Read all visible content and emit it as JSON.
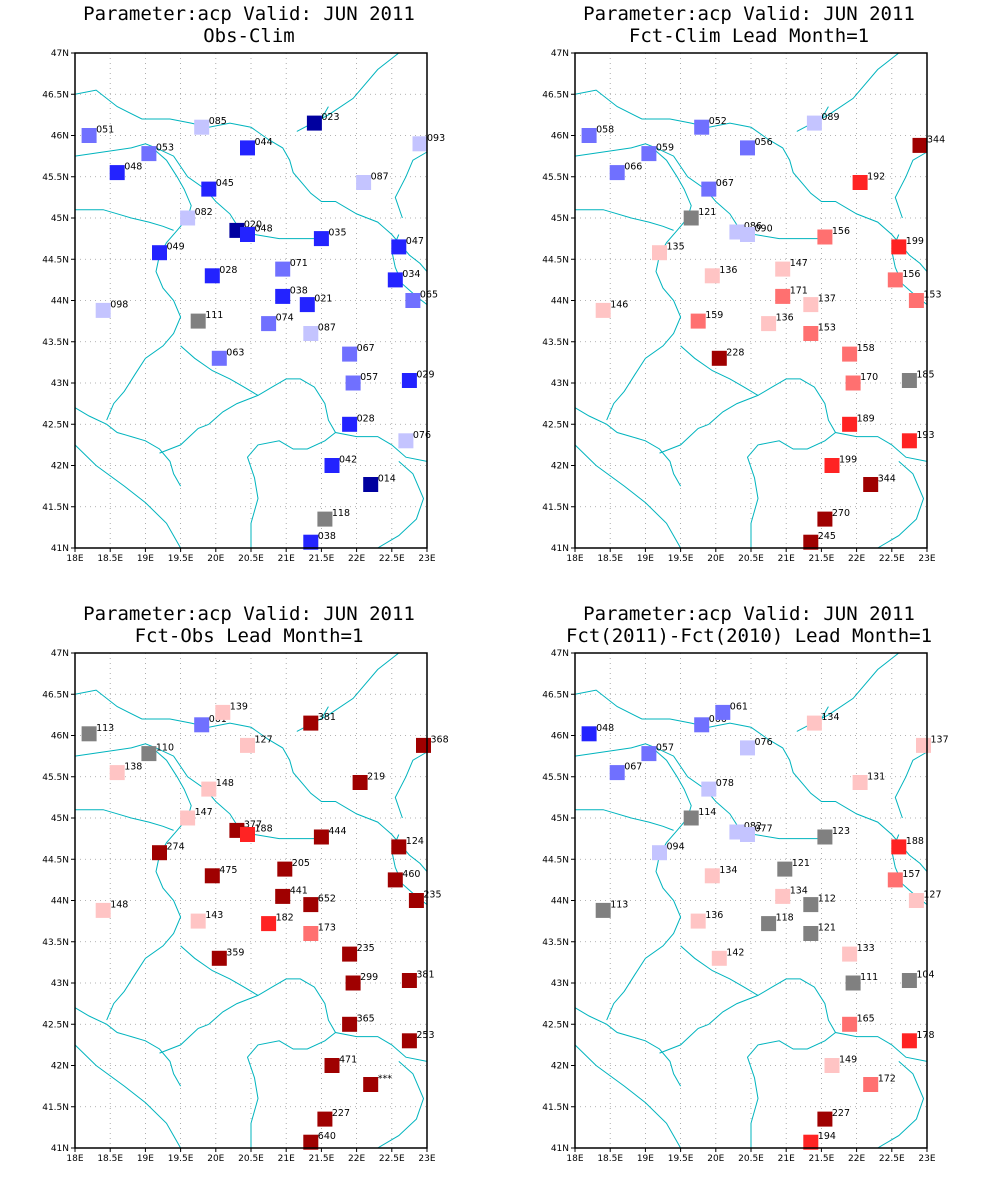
{
  "colors": {
    "b3": "#00009f",
    "b2": "#2323ff",
    "b1": "#7070ff",
    "b0": "#c4c4ff",
    "g": "#808080",
    "r0": "#ffc4c4",
    "r1": "#ff7070",
    "r2": "#ff2323",
    "r3": "#9f0000",
    "border": "#00b4be"
  },
  "axes": {
    "x_ticks": [
      "18E",
      "18.5E",
      "19E",
      "19.5E",
      "20E",
      "20.5E",
      "21E",
      "21.5E",
      "22E",
      "22.5E",
      "23E"
    ],
    "y_ticks": [
      "41N",
      "41.5N",
      "42N",
      "42.5N",
      "43N",
      "43.5N",
      "44N",
      "44.5N",
      "45N",
      "45.5N",
      "46N",
      "46.5N",
      "47N"
    ],
    "lon_range": [
      18,
      23
    ],
    "lat_range": [
      41,
      47
    ]
  },
  "panels": [
    {
      "title_line1": "Parameter:acp Valid: JUN 2011",
      "title_line2": "Obs-Clim",
      "stations": [
        {
          "lon": 18.2,
          "lat": 46.0,
          "label": "051",
          "c": "b1"
        },
        {
          "lon": 19.8,
          "lat": 46.1,
          "label": "085",
          "c": "b0"
        },
        {
          "lon": 21.4,
          "lat": 46.15,
          "label": "023",
          "c": "b3"
        },
        {
          "lon": 22.9,
          "lat": 45.9,
          "label": "093",
          "c": "b0"
        },
        {
          "lon": 19.05,
          "lat": 45.78,
          "label": "053",
          "c": "b1"
        },
        {
          "lon": 20.45,
          "lat": 45.85,
          "label": "044",
          "c": "b2"
        },
        {
          "lon": 18.6,
          "lat": 45.55,
          "label": "048",
          "c": "b2"
        },
        {
          "lon": 19.9,
          "lat": 45.35,
          "label": "045",
          "c": "b2"
        },
        {
          "lon": 22.1,
          "lat": 45.43,
          "label": "087",
          "c": "b0"
        },
        {
          "lon": 19.6,
          "lat": 45.0,
          "label": "082",
          "c": "b0"
        },
        {
          "lon": 20.3,
          "lat": 44.85,
          "label": "020",
          "c": "b3"
        },
        {
          "lon": 20.45,
          "lat": 44.8,
          "label": "048",
          "c": "b2"
        },
        {
          "lon": 21.5,
          "lat": 44.75,
          "label": "035",
          "c": "b2"
        },
        {
          "lon": 22.6,
          "lat": 44.65,
          "label": "047",
          "c": "b2"
        },
        {
          "lon": 19.2,
          "lat": 44.58,
          "label": "049",
          "c": "b2"
        },
        {
          "lon": 19.95,
          "lat": 44.3,
          "label": "028",
          "c": "b2"
        },
        {
          "lon": 20.95,
          "lat": 44.38,
          "label": "071",
          "c": "b1"
        },
        {
          "lon": 22.55,
          "lat": 44.25,
          "label": "034",
          "c": "b2"
        },
        {
          "lon": 20.95,
          "lat": 44.05,
          "label": "038",
          "c": "b2"
        },
        {
          "lon": 21.3,
          "lat": 43.95,
          "label": "021",
          "c": "b2"
        },
        {
          "lon": 22.8,
          "lat": 44.0,
          "label": "065",
          "c": "b1"
        },
        {
          "lon": 18.4,
          "lat": 43.88,
          "label": "098",
          "c": "b0"
        },
        {
          "lon": 19.75,
          "lat": 43.75,
          "label": "111",
          "c": "g"
        },
        {
          "lon": 20.75,
          "lat": 43.72,
          "label": "074",
          "c": "b1"
        },
        {
          "lon": 21.35,
          "lat": 43.6,
          "label": "087",
          "c": "b0"
        },
        {
          "lon": 20.05,
          "lat": 43.3,
          "label": "063",
          "c": "b1"
        },
        {
          "lon": 21.9,
          "lat": 43.35,
          "label": "067",
          "c": "b1"
        },
        {
          "lon": 21.95,
          "lat": 43.0,
          "label": "057",
          "c": "b1"
        },
        {
          "lon": 22.75,
          "lat": 43.03,
          "label": "029",
          "c": "b2"
        },
        {
          "lon": 21.9,
          "lat": 42.5,
          "label": "028",
          "c": "b2"
        },
        {
          "lon": 22.7,
          "lat": 42.3,
          "label": "076",
          "c": "b0"
        },
        {
          "lon": 21.65,
          "lat": 42.0,
          "label": "042",
          "c": "b2"
        },
        {
          "lon": 22.2,
          "lat": 41.77,
          "label": "014",
          "c": "b3"
        },
        {
          "lon": 21.55,
          "lat": 41.35,
          "label": "118",
          "c": "g"
        },
        {
          "lon": 21.35,
          "lat": 41.07,
          "label": "038",
          "c": "b2"
        }
      ]
    },
    {
      "title_line1": "Parameter:acp Valid: JUN 2011",
      "title_line2": "Fct-Clim Lead Month=1",
      "stations": [
        {
          "lon": 18.2,
          "lat": 46.0,
          "label": "058",
          "c": "b1"
        },
        {
          "lon": 19.8,
          "lat": 46.1,
          "label": "052",
          "c": "b1"
        },
        {
          "lon": 21.4,
          "lat": 46.15,
          "label": "089",
          "c": "b0"
        },
        {
          "lon": 22.9,
          "lat": 45.88,
          "label": "344",
          "c": "r3"
        },
        {
          "lon": 19.05,
          "lat": 45.78,
          "label": "059",
          "c": "b1"
        },
        {
          "lon": 20.45,
          "lat": 45.85,
          "label": "056",
          "c": "b1"
        },
        {
          "lon": 18.6,
          "lat": 45.55,
          "label": "066",
          "c": "b1"
        },
        {
          "lon": 19.9,
          "lat": 45.35,
          "label": "067",
          "c": "b1"
        },
        {
          "lon": 22.05,
          "lat": 45.43,
          "label": "192",
          "c": "r2"
        },
        {
          "lon": 19.65,
          "lat": 45.0,
          "label": "121",
          "c": "g"
        },
        {
          "lon": 20.3,
          "lat": 44.83,
          "label": "086",
          "c": "b0"
        },
        {
          "lon": 20.45,
          "lat": 44.8,
          "label": "090",
          "c": "b0"
        },
        {
          "lon": 21.55,
          "lat": 44.77,
          "label": "156",
          "c": "r1"
        },
        {
          "lon": 22.6,
          "lat": 44.65,
          "label": "199",
          "c": "r2"
        },
        {
          "lon": 19.2,
          "lat": 44.58,
          "label": "135",
          "c": "r0"
        },
        {
          "lon": 19.95,
          "lat": 44.3,
          "label": "136",
          "c": "r0"
        },
        {
          "lon": 20.95,
          "lat": 44.38,
          "label": "147",
          "c": "r0"
        },
        {
          "lon": 22.55,
          "lat": 44.25,
          "label": "156",
          "c": "r1"
        },
        {
          "lon": 20.95,
          "lat": 44.05,
          "label": "171",
          "c": "r1"
        },
        {
          "lon": 21.35,
          "lat": 43.95,
          "label": "137",
          "c": "r0"
        },
        {
          "lon": 22.85,
          "lat": 44.0,
          "label": "153",
          "c": "r1"
        },
        {
          "lon": 18.4,
          "lat": 43.88,
          "label": "146",
          "c": "r0"
        },
        {
          "lon": 19.75,
          "lat": 43.75,
          "label": "159",
          "c": "r1"
        },
        {
          "lon": 20.75,
          "lat": 43.72,
          "label": "136",
          "c": "r0"
        },
        {
          "lon": 21.35,
          "lat": 43.6,
          "label": "153",
          "c": "r1"
        },
        {
          "lon": 20.05,
          "lat": 43.3,
          "label": "228",
          "c": "r3"
        },
        {
          "lon": 21.9,
          "lat": 43.35,
          "label": "158",
          "c": "r1"
        },
        {
          "lon": 21.95,
          "lat": 43.0,
          "label": "170",
          "c": "r1"
        },
        {
          "lon": 22.75,
          "lat": 43.03,
          "label": "185",
          "c": "g"
        },
        {
          "lon": 21.9,
          "lat": 42.5,
          "label": "189",
          "c": "r2"
        },
        {
          "lon": 22.75,
          "lat": 42.3,
          "label": "193",
          "c": "r2"
        },
        {
          "lon": 21.65,
          "lat": 42.0,
          "label": "199",
          "c": "r2"
        },
        {
          "lon": 22.2,
          "lat": 41.77,
          "label": "344",
          "c": "r3"
        },
        {
          "lon": 21.55,
          "lat": 41.35,
          "label": "270",
          "c": "r3"
        },
        {
          "lon": 21.35,
          "lat": 41.07,
          "label": "245",
          "c": "r3"
        }
      ]
    },
    {
      "title_line1": "Parameter:acp Valid: JUN 2011",
      "title_line2": "Fct-Obs Lead Month=1",
      "stations": [
        {
          "lon": 18.2,
          "lat": 46.02,
          "label": "113",
          "c": "g"
        },
        {
          "lon": 19.8,
          "lat": 46.13,
          "label": "061",
          "c": "b1"
        },
        {
          "lon": 20.1,
          "lat": 46.28,
          "label": "139",
          "c": "r0"
        },
        {
          "lon": 21.35,
          "lat": 46.15,
          "label": "381",
          "c": "r3"
        },
        {
          "lon": 22.95,
          "lat": 45.88,
          "label": "368",
          "c": "r3"
        },
        {
          "lon": 19.05,
          "lat": 45.78,
          "label": "110",
          "c": "g"
        },
        {
          "lon": 20.45,
          "lat": 45.88,
          "label": "127",
          "c": "r0"
        },
        {
          "lon": 18.6,
          "lat": 45.55,
          "label": "138",
          "c": "r0"
        },
        {
          "lon": 19.9,
          "lat": 45.35,
          "label": "148",
          "c": "r0"
        },
        {
          "lon": 22.05,
          "lat": 45.43,
          "label": "219",
          "c": "r3"
        },
        {
          "lon": 19.6,
          "lat": 45.0,
          "label": "147",
          "c": "r0"
        },
        {
          "lon": 20.3,
          "lat": 44.85,
          "label": "377",
          "c": "r3"
        },
        {
          "lon": 20.45,
          "lat": 44.8,
          "label": "188",
          "c": "r2"
        },
        {
          "lon": 21.5,
          "lat": 44.77,
          "label": "444",
          "c": "r3"
        },
        {
          "lon": 22.6,
          "lat": 44.65,
          "label": "124",
          "c": "r3"
        },
        {
          "lon": 19.2,
          "lat": 44.58,
          "label": "274",
          "c": "r3"
        },
        {
          "lon": 19.95,
          "lat": 44.3,
          "label": "475",
          "c": "r3"
        },
        {
          "lon": 20.98,
          "lat": 44.38,
          "label": "205",
          "c": "r3"
        },
        {
          "lon": 22.55,
          "lat": 44.25,
          "label": "460",
          "c": "r3"
        },
        {
          "lon": 20.95,
          "lat": 44.05,
          "label": "441",
          "c": "r3"
        },
        {
          "lon": 21.35,
          "lat": 43.95,
          "label": "652",
          "c": "r3"
        },
        {
          "lon": 22.85,
          "lat": 44.0,
          "label": "235",
          "c": "r3"
        },
        {
          "lon": 18.4,
          "lat": 43.88,
          "label": "148",
          "c": "r0"
        },
        {
          "lon": 19.75,
          "lat": 43.75,
          "label": "143",
          "c": "r0"
        },
        {
          "lon": 20.75,
          "lat": 43.72,
          "label": "182",
          "c": "r2"
        },
        {
          "lon": 21.35,
          "lat": 43.6,
          "label": "173",
          "c": "r1"
        },
        {
          "lon": 20.05,
          "lat": 43.3,
          "label": "359",
          "c": "r3"
        },
        {
          "lon": 21.9,
          "lat": 43.35,
          "label": "235",
          "c": "r3"
        },
        {
          "lon": 21.95,
          "lat": 43.0,
          "label": "299",
          "c": "r3"
        },
        {
          "lon": 22.75,
          "lat": 43.03,
          "label": "381",
          "c": "r3"
        },
        {
          "lon": 21.9,
          "lat": 42.5,
          "label": "365",
          "c": "r3"
        },
        {
          "lon": 22.75,
          "lat": 42.3,
          "label": "253",
          "c": "r3"
        },
        {
          "lon": 21.65,
          "lat": 42.0,
          "label": "471",
          "c": "r3"
        },
        {
          "lon": 22.2,
          "lat": 41.77,
          "label": "***",
          "c": "r3"
        },
        {
          "lon": 21.55,
          "lat": 41.35,
          "label": "227",
          "c": "r3"
        },
        {
          "lon": 21.35,
          "lat": 41.07,
          "label": "640",
          "c": "r3"
        }
      ]
    },
    {
      "title_line1": "Parameter:acp Valid: JUN 2011",
      "title_line2": "Fct(2011)-Fct(2010) Lead Month=1",
      "stations": [
        {
          "lon": 18.2,
          "lat": 46.02,
          "label": "048",
          "c": "b2"
        },
        {
          "lon": 19.8,
          "lat": 46.13,
          "label": "066",
          "c": "b1"
        },
        {
          "lon": 20.1,
          "lat": 46.28,
          "label": "061",
          "c": "b1"
        },
        {
          "lon": 21.4,
          "lat": 46.15,
          "label": "134",
          "c": "r0"
        },
        {
          "lon": 22.95,
          "lat": 45.88,
          "label": "137",
          "c": "r0"
        },
        {
          "lon": 19.05,
          "lat": 45.78,
          "label": "057",
          "c": "b1"
        },
        {
          "lon": 20.45,
          "lat": 45.85,
          "label": "076",
          "c": "b0"
        },
        {
          "lon": 18.6,
          "lat": 45.55,
          "label": "067",
          "c": "b1"
        },
        {
          "lon": 19.9,
          "lat": 45.35,
          "label": "078",
          "c": "b0"
        },
        {
          "lon": 22.05,
          "lat": 45.43,
          "label": "131",
          "c": "r0"
        },
        {
          "lon": 19.65,
          "lat": 45.0,
          "label": "114",
          "c": "g"
        },
        {
          "lon": 20.3,
          "lat": 44.83,
          "label": "082",
          "c": "b0"
        },
        {
          "lon": 20.45,
          "lat": 44.8,
          "label": "077",
          "c": "b0"
        },
        {
          "lon": 21.55,
          "lat": 44.77,
          "label": "123",
          "c": "g"
        },
        {
          "lon": 22.6,
          "lat": 44.65,
          "label": "188",
          "c": "r2"
        },
        {
          "lon": 19.2,
          "lat": 44.58,
          "label": "094",
          "c": "b0"
        },
        {
          "lon": 19.95,
          "lat": 44.3,
          "label": "134",
          "c": "r0"
        },
        {
          "lon": 20.98,
          "lat": 44.38,
          "label": "121",
          "c": "g"
        },
        {
          "lon": 22.55,
          "lat": 44.25,
          "label": "157",
          "c": "r1"
        },
        {
          "lon": 20.95,
          "lat": 44.05,
          "label": "134",
          "c": "r0"
        },
        {
          "lon": 21.35,
          "lat": 43.95,
          "label": "112",
          "c": "g"
        },
        {
          "lon": 22.85,
          "lat": 44.0,
          "label": "127",
          "c": "r0"
        },
        {
          "lon": 18.4,
          "lat": 43.88,
          "label": "113",
          "c": "g"
        },
        {
          "lon": 19.75,
          "lat": 43.75,
          "label": "136",
          "c": "r0"
        },
        {
          "lon": 20.75,
          "lat": 43.72,
          "label": "118",
          "c": "g"
        },
        {
          "lon": 21.35,
          "lat": 43.6,
          "label": "121",
          "c": "g"
        },
        {
          "lon": 20.05,
          "lat": 43.3,
          "label": "142",
          "c": "r0"
        },
        {
          "lon": 21.9,
          "lat": 43.35,
          "label": "133",
          "c": "r0"
        },
        {
          "lon": 21.95,
          "lat": 43.0,
          "label": "111",
          "c": "g"
        },
        {
          "lon": 22.75,
          "lat": 43.03,
          "label": "104",
          "c": "g"
        },
        {
          "lon": 21.9,
          "lat": 42.5,
          "label": "165",
          "c": "r1"
        },
        {
          "lon": 22.75,
          "lat": 42.3,
          "label": "178",
          "c": "r2"
        },
        {
          "lon": 21.65,
          "lat": 42.0,
          "label": "149",
          "c": "r0"
        },
        {
          "lon": 22.2,
          "lat": 41.77,
          "label": "172",
          "c": "r1"
        },
        {
          "lon": 21.55,
          "lat": 41.35,
          "label": "227",
          "c": "r3"
        },
        {
          "lon": 21.35,
          "lat": 41.07,
          "label": "194",
          "c": "r2"
        }
      ]
    }
  ]
}
